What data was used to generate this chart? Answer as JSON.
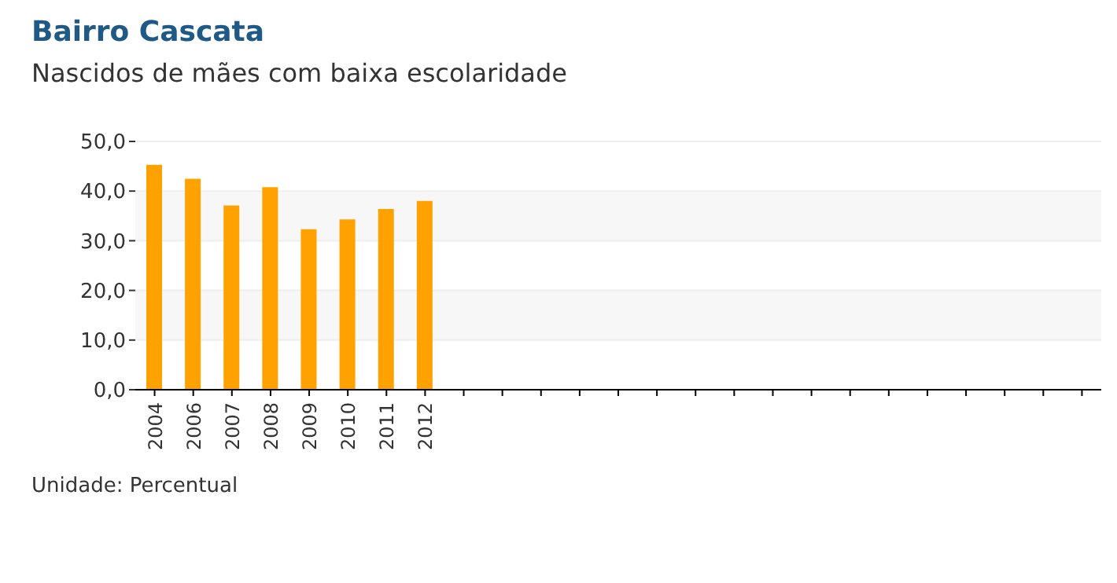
{
  "chart_data": {
    "type": "bar",
    "title": "Bairro Cascata",
    "subtitle": "Nascidos de mães com baixa escolaridade",
    "categories": [
      "2004",
      "2006",
      "2007",
      "2008",
      "2009",
      "2010",
      "2011",
      "2012",
      null,
      null,
      null,
      null,
      null,
      null,
      null,
      null,
      null,
      null,
      null,
      null,
      null,
      null,
      null,
      null,
      null
    ],
    "values": [
      45.3,
      42.5,
      37.1,
      40.8,
      32.3,
      34.3,
      36.4,
      38.0,
      null,
      null,
      null,
      null,
      null,
      null,
      null,
      null,
      null,
      null,
      null,
      null,
      null,
      null,
      null,
      null,
      null
    ],
    "color": "#ffa200",
    "ylim": [
      0,
      50
    ],
    "yticks": [
      {
        "value": 0,
        "label": "0,0"
      },
      {
        "value": 10,
        "label": "10,0"
      },
      {
        "value": 20,
        "label": "20,0"
      },
      {
        "value": 30,
        "label": "30,0"
      },
      {
        "value": 40,
        "label": "40,0"
      },
      {
        "value": 50,
        "label": "50,0"
      }
    ],
    "grid": "y",
    "annotations": [
      "Unidade: Percentual"
    ]
  }
}
